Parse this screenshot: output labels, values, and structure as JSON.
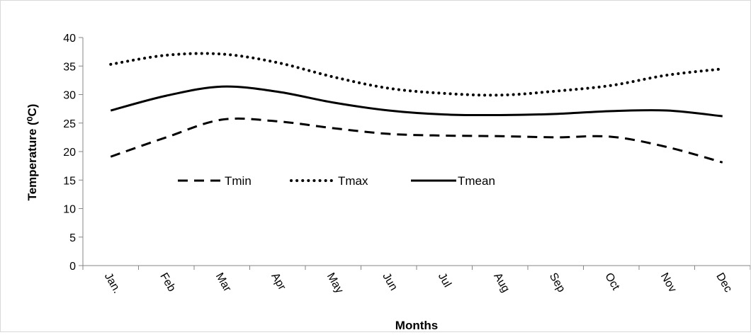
{
  "chart_data": {
    "type": "line",
    "categories": [
      "Jan.",
      "Feb",
      "Mar",
      "Apr",
      "May",
      "Jun",
      "Jul",
      "Aug",
      "Sep",
      "Oct",
      "Nov",
      "Dec"
    ],
    "series": [
      {
        "name": "Tmin",
        "values": [
          19.1,
          22.5,
          25.6,
          25.3,
          24.1,
          23.1,
          22.8,
          22.7,
          22.5,
          22.6,
          20.8,
          18.1
        ],
        "dash": "dashed",
        "color": "#000000"
      },
      {
        "name": "Tmax",
        "values": [
          35.3,
          36.9,
          37.1,
          35.6,
          33.1,
          31.1,
          30.2,
          29.9,
          30.6,
          31.6,
          33.4,
          34.5
        ],
        "dash": "dotted",
        "color": "#000000"
      },
      {
        "name": "Tmean",
        "values": [
          27.2,
          29.8,
          31.4,
          30.5,
          28.6,
          27.2,
          26.5,
          26.4,
          26.6,
          27.1,
          27.2,
          26.2
        ],
        "dash": "solid",
        "color": "#000000"
      }
    ],
    "xlabel": "Months",
    "ylabel": "Temperature (⁰C)",
    "ylim": [
      0,
      40
    ],
    "yticks": [
      "0",
      "5",
      "10",
      "15",
      "20",
      "25",
      "30",
      "35",
      "40"
    ],
    "grid": false,
    "legend": "inside-left"
  }
}
